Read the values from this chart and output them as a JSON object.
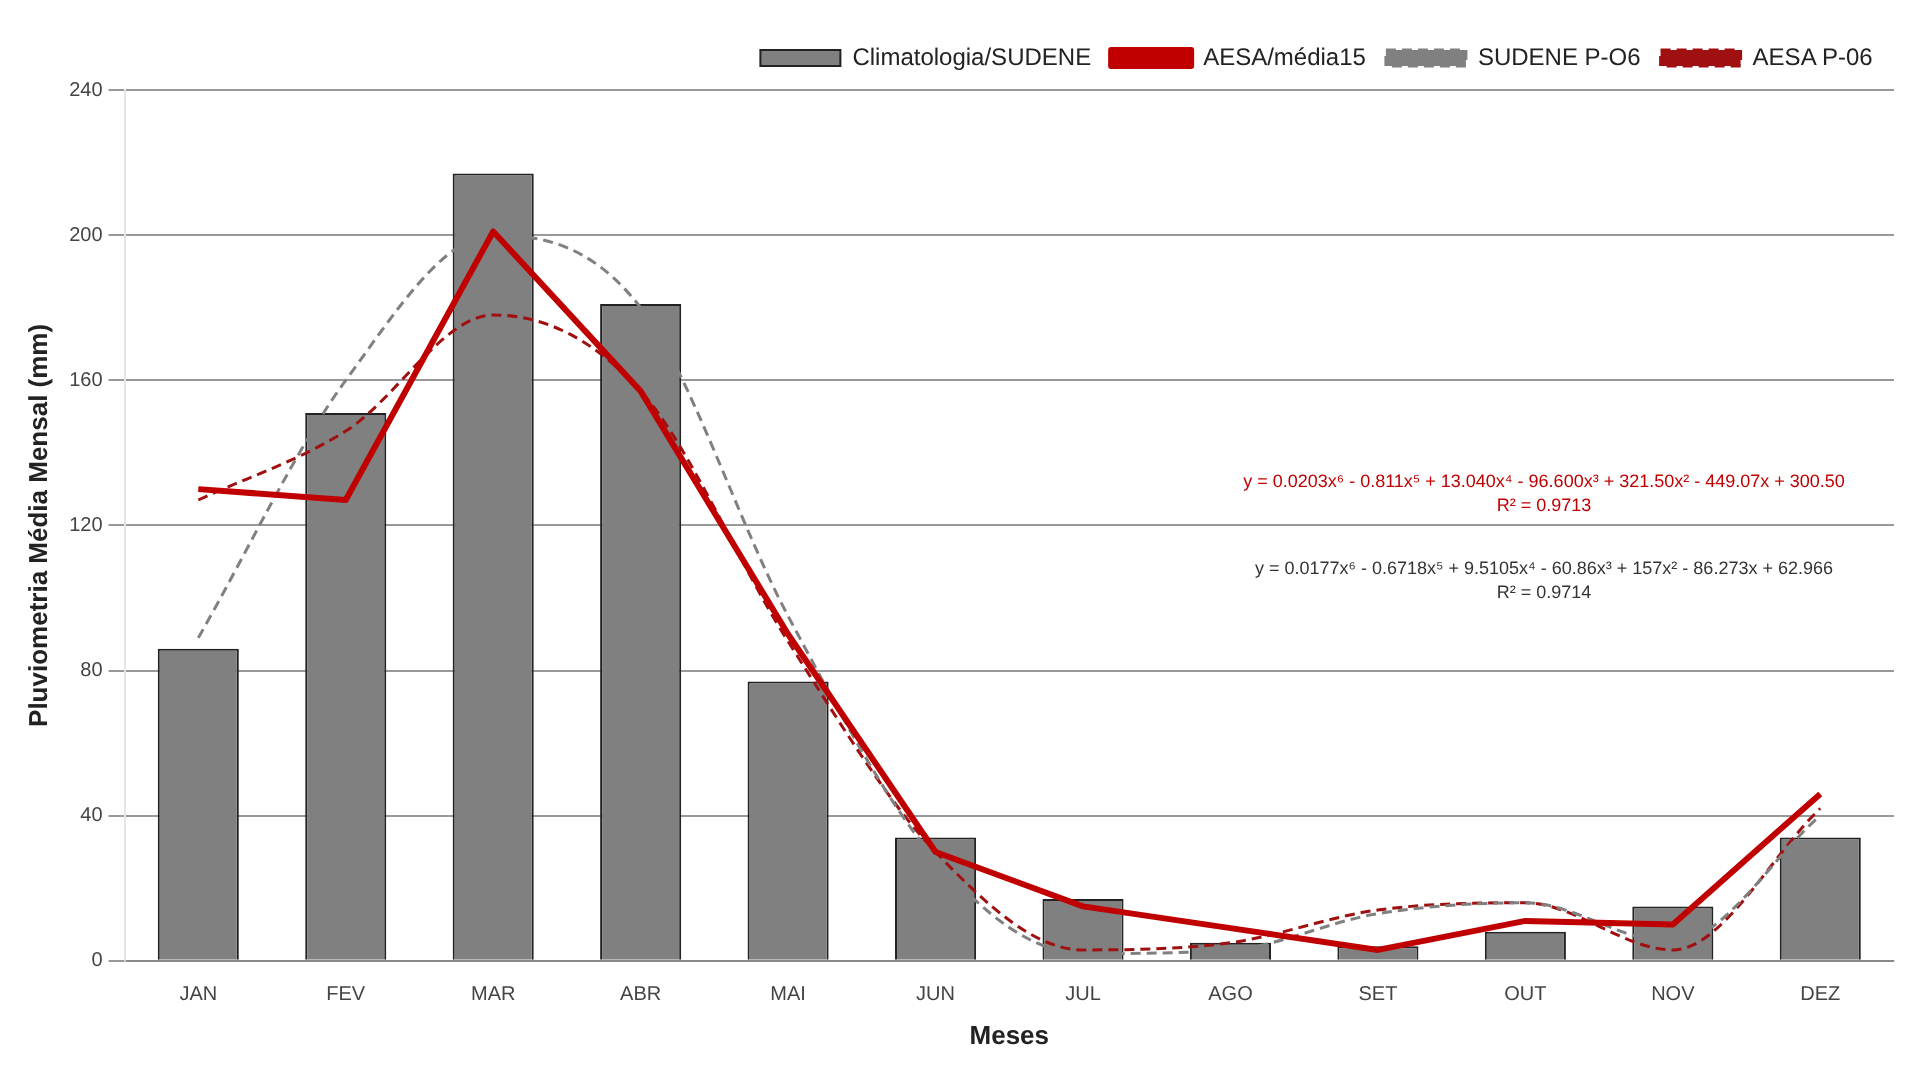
{
  "chart_data": {
    "type": "bar",
    "xlabel": "Meses",
    "ylabel": "Pluviometria Média Mensal (mm)",
    "categories": [
      "JAN",
      "FEV",
      "MAR",
      "ABR",
      "MAI",
      "JUN",
      "JUL",
      "AGO",
      "SET",
      "OUT",
      "NOV",
      "DEZ"
    ],
    "series": [
      {
        "name": "Climatologia/SUDENE",
        "color": "#808080",
        "values": [
          86,
          151,
          217,
          181,
          77,
          34,
          17,
          5,
          4,
          8,
          15,
          34
        ]
      },
      {
        "name": "AESA/média15",
        "type": "line",
        "color": "#c00000",
        "line_style": "solid",
        "values": [
          130,
          127,
          201,
          157,
          90,
          30,
          15,
          9,
          3,
          11,
          10,
          46
        ]
      },
      {
        "name": "SUDENE P-O6",
        "type": "line",
        "color": "#808080",
        "line_style": "dashed",
        "values": [
          89,
          160,
          200,
          180,
          95,
          28,
          2,
          3,
          13,
          16,
          5,
          40
        ]
      },
      {
        "name": "AESA P-06",
        "type": "line",
        "color": "#a01010",
        "line_style": "dashed",
        "values": [
          127,
          146,
          178,
          157,
          88,
          30,
          3,
          5,
          14,
          16,
          3,
          42
        ]
      }
    ],
    "ylim": [
      0,
      240
    ],
    "yticks": [
      0,
      40,
      80,
      120,
      160,
      200,
      240
    ],
    "grid": "y",
    "legend": "top right",
    "marker": "none",
    "annotations": [
      "y = 0.0203x⁶ - 0.811x⁵ + 13.040x⁴ - 96.600x³ + 321.50x² - 449.07x + 300.50",
      "R² = 0.9713",
      "y = 0.0177x⁶ - 0.6718x⁵ + 9.5105x⁴ - 60.86x³ + 157x² - 86.273x + 62.966",
      "R² = 0.9714"
    ]
  }
}
